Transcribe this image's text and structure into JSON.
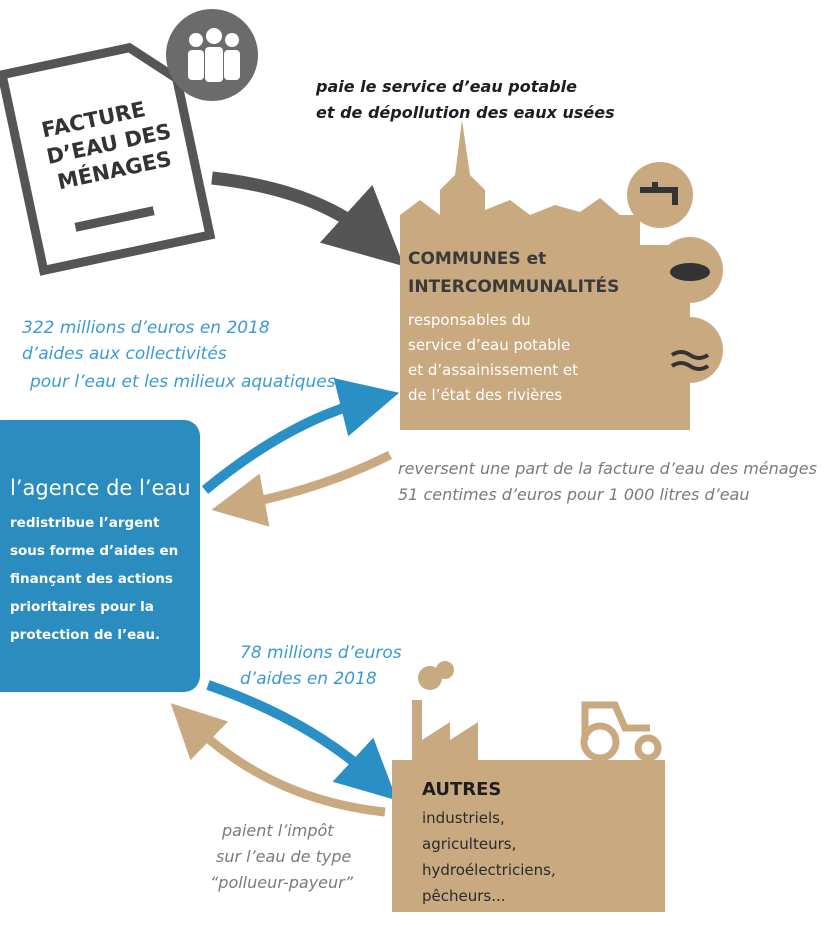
{
  "invoice": {
    "lines": [
      "FACTURE",
      "D’EAU DES",
      "MÉNAGES"
    ]
  },
  "payment_label": {
    "lines": [
      "paie le service d’eau potable",
      "et de dépollution des eaux usées"
    ]
  },
  "communes": {
    "title_lines": [
      "COMMUNES et",
      "INTERCOMMUNALITÉS"
    ],
    "description_lines": [
      "responsables du",
      "service d’eau potable",
      "et d’assainissement et",
      "de l’état des rivières"
    ]
  },
  "aid_communes": {
    "lines": [
      "322 millions d’euros en 2018",
      "d’aides aux collectivités",
      "pour l’eau et les milieux aquatiques"
    ]
  },
  "reversal": {
    "lines": [
      "reversent une part de la facture d’eau des ménages",
      "51 centimes d’euros pour 1 000 litres d’eau"
    ]
  },
  "agency": {
    "name": "l’agence de l’eau",
    "description_lines": [
      "redistribue l’argent",
      "sous forme d’aides en",
      "finançant des actions",
      "prioritaires pour la",
      "protection de l’eau."
    ]
  },
  "aid_others": {
    "lines": [
      "78 millions d’euros",
      "d’aides en 2018"
    ]
  },
  "others": {
    "title": "AUTRES",
    "lines": [
      "industriels,",
      "agriculteurs,",
      "hydroélectriciens,",
      "pêcheurs..."
    ]
  },
  "tax_label": {
    "lines": [
      "paient l’impôt",
      "sur l’eau de type",
      "“pollueur-payeur”"
    ]
  }
}
